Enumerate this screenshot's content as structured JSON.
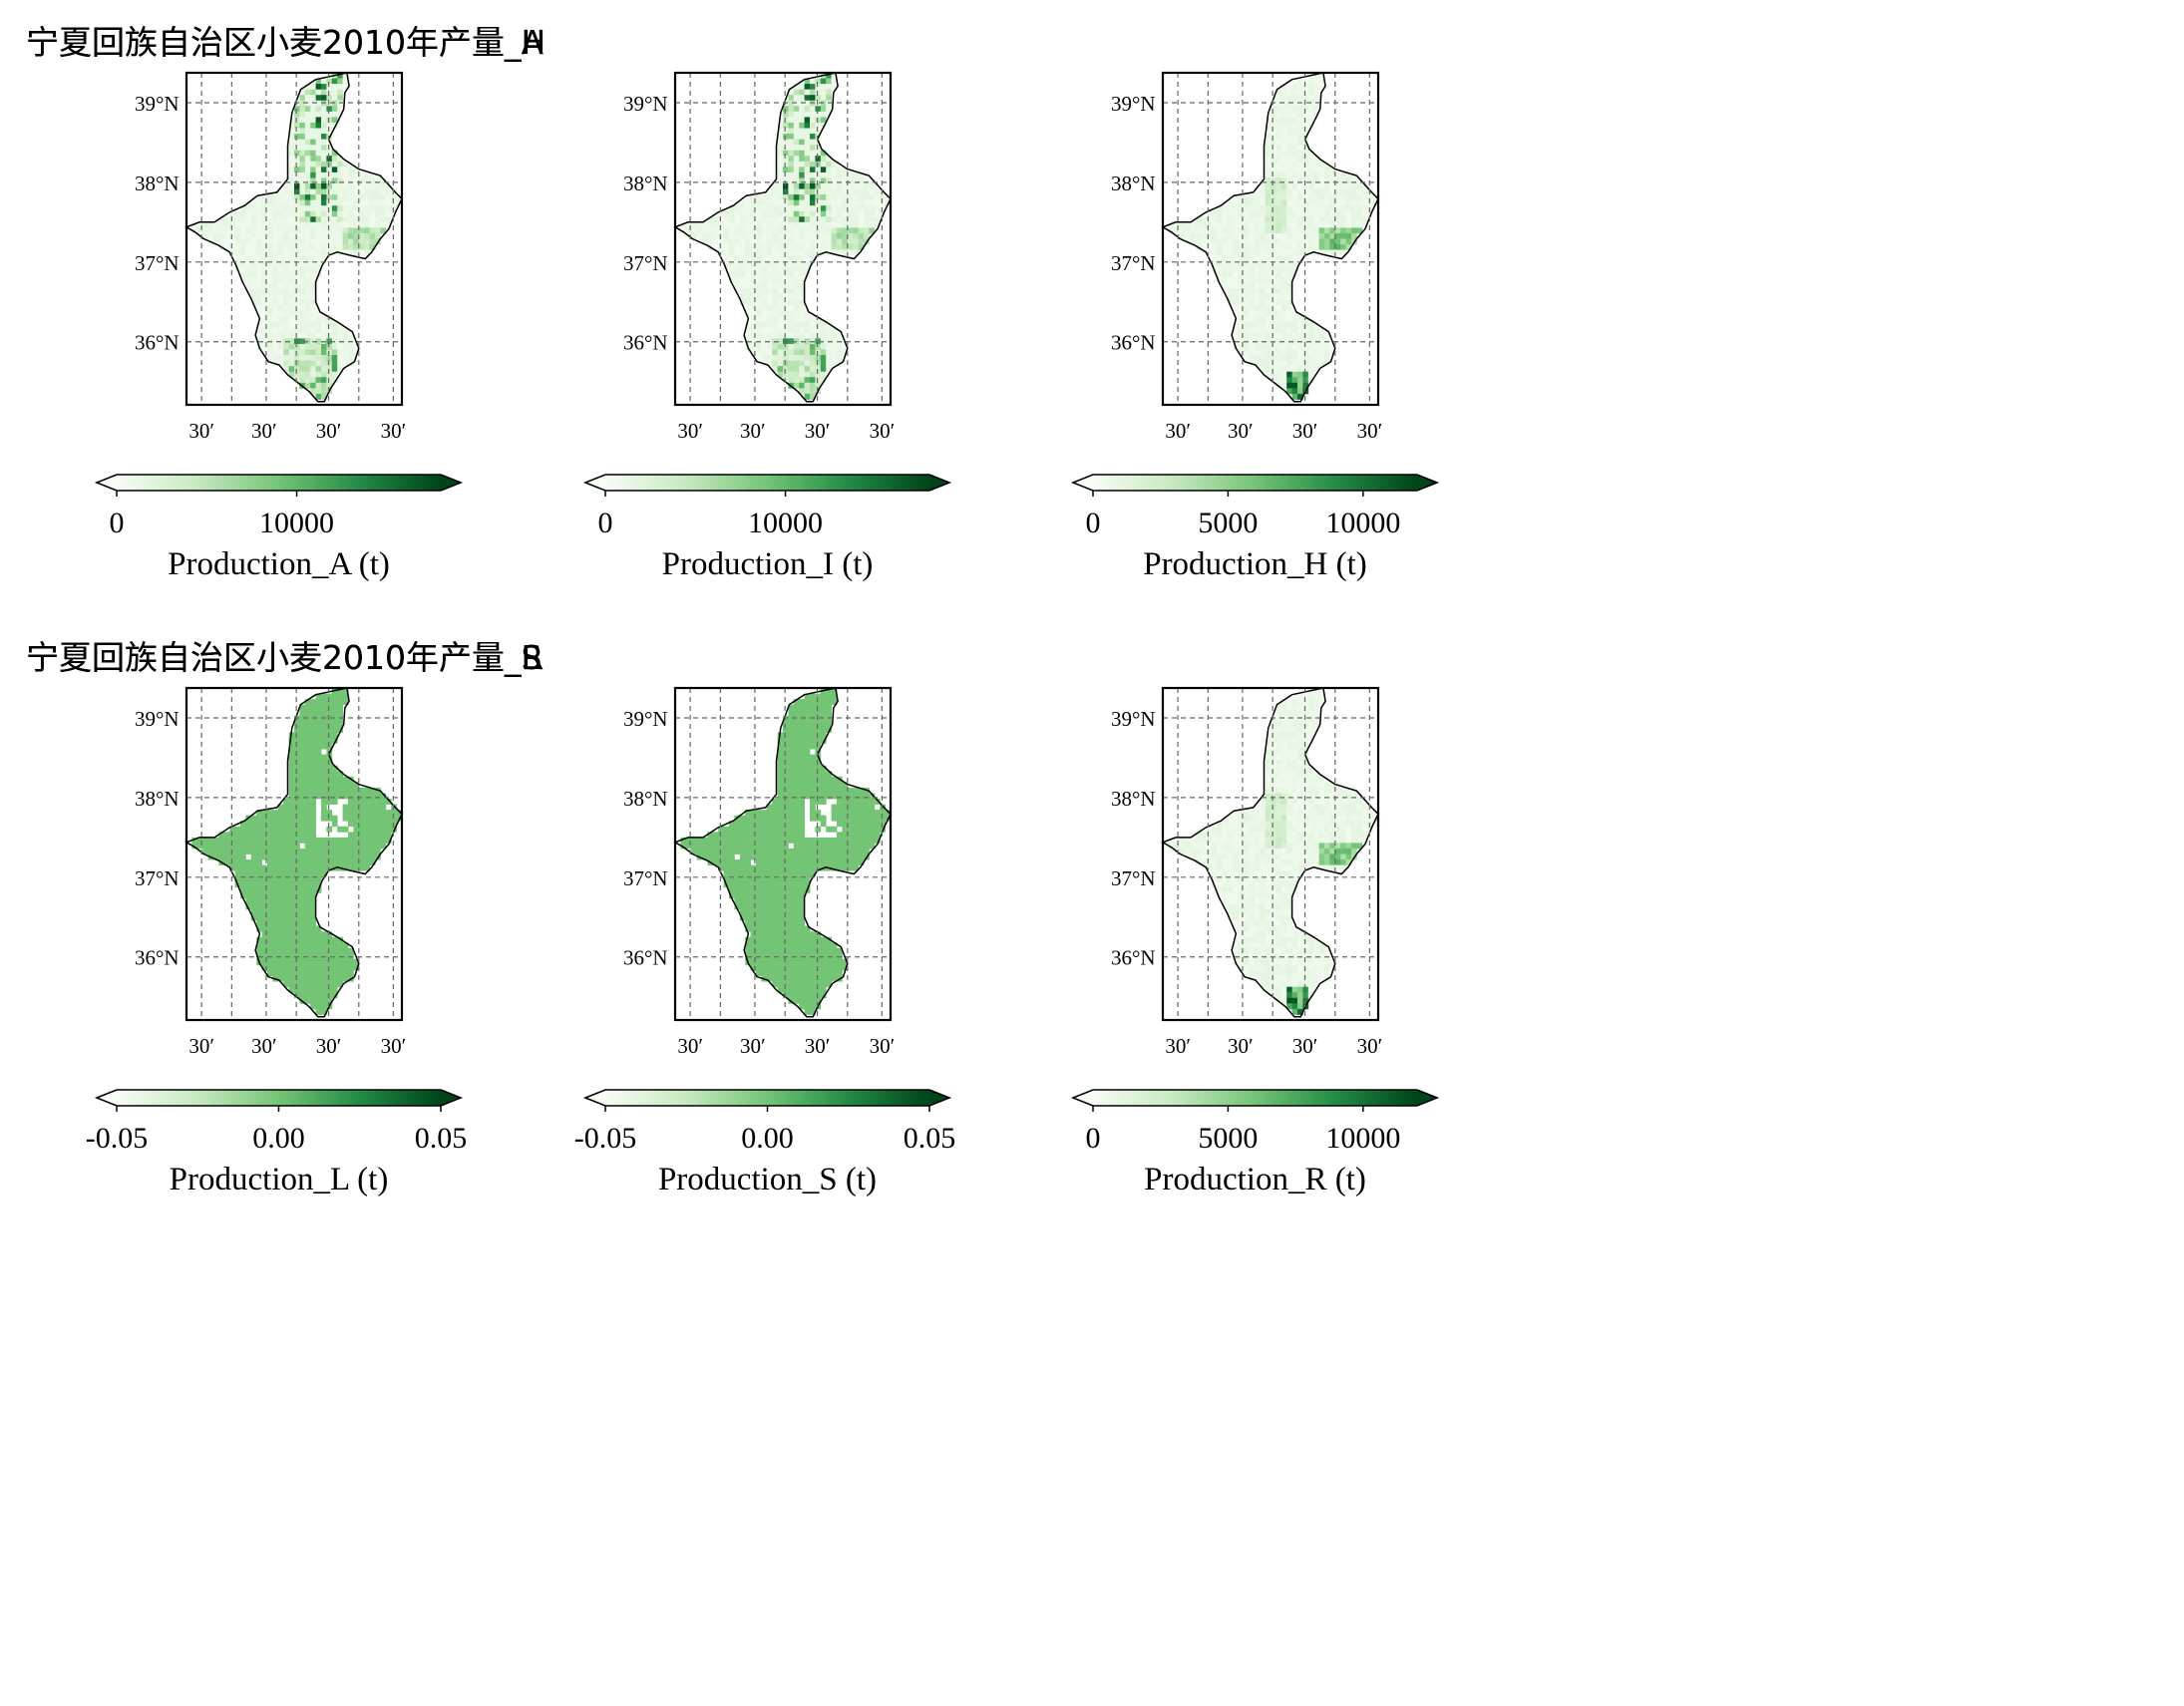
{
  "panels": [
    {
      "title": "宁夏回族自治区小麦2010年产量_A",
      "fill": "sparse",
      "hot": "north",
      "colorbar": {
        "ticks": [
          "0",
          "10000"
        ],
        "tick_values": [
          0,
          10000
        ],
        "vmax": 18000,
        "label": "Production_A (t)"
      }
    },
    {
      "title": "宁夏回族自治区小麦2010年产量_I",
      "fill": "sparse",
      "hot": "north",
      "colorbar": {
        "ticks": [
          "0",
          "10000"
        ],
        "tick_values": [
          0,
          10000
        ],
        "vmax": 18000,
        "label": "Production_I (t)"
      }
    },
    {
      "title": "宁夏回族自治区小麦2010年产量_H",
      "fill": "sparse",
      "hot": "south",
      "colorbar": {
        "ticks": [
          "0",
          "5000",
          "10000"
        ],
        "tick_values": [
          0,
          5000,
          10000
        ],
        "vmax": 12000,
        "label": "Production_H (t)"
      }
    },
    {
      "title": "宁夏回族自治区小麦2010年产量_L",
      "fill": "uniform",
      "hot": "none",
      "colorbar": {
        "ticks": [
          "-0.05",
          "0.00",
          "0.05"
        ],
        "tick_values": [
          -0.05,
          0,
          0.05
        ],
        "vmin": -0.05,
        "vmax": 0.05,
        "label": "Production_L (t)"
      }
    },
    {
      "title": "宁夏回族自治区小麦2010年产量_S",
      "fill": "uniform",
      "hot": "none",
      "colorbar": {
        "ticks": [
          "-0.05",
          "0.00",
          "0.05"
        ],
        "tick_values": [
          -0.05,
          0,
          0.05
        ],
        "vmin": -0.05,
        "vmax": 0.05,
        "label": "Production_S (t)"
      }
    },
    {
      "title": "宁夏回族自治区小麦2010年产量_R",
      "fill": "sparse",
      "hot": "south",
      "colorbar": {
        "ticks": [
          "0",
          "5000",
          "10000"
        ],
        "tick_values": [
          0,
          5000,
          10000
        ],
        "vmax": 12000,
        "label": "Production_R (t)"
      }
    }
  ],
  "lat_labels": [
    "39°N",
    "38°N",
    "37°N",
    "36°N"
  ],
  "lon_labels": [
    "30′",
    "30′",
    "30′",
    "30′"
  ],
  "colormap": [
    "#f7fcf5",
    "#c7e9c0",
    "#74c476",
    "#238b45",
    "#00441b"
  ],
  "gridlines": "dashed"
}
